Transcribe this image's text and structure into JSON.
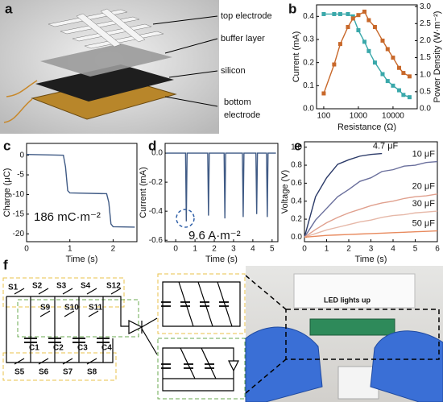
{
  "panel_a": {
    "label": "a",
    "callouts": [
      "top electrode",
      "buffer layer",
      "silicon",
      "bottom",
      "electrode"
    ]
  },
  "chart_data": [
    {
      "type": "line",
      "panel": "b",
      "x_label": "Resistance (Ω)",
      "y_label": "Current (mA)",
      "y2_label": "Power Density (W·m⁻²)",
      "xscale": "log",
      "xlim": [
        62,
        50000
      ],
      "xticks": [
        100,
        1000,
        10000
      ],
      "ylim": [
        0,
        0.45
      ],
      "yticks": [
        {
          "value": 0,
          "label": "0.0"
        },
        {
          "value": 0.1,
          "label": "0.1"
        },
        {
          "value": 0.2,
          "label": "0.2"
        },
        {
          "value": 0.3,
          "label": "0.3"
        },
        {
          "value": 0.4,
          "label": "0.4"
        }
      ],
      "y2lim": [
        0,
        3.05
      ],
      "y2ticks": [
        {
          "value": 0,
          "label": "0.0"
        },
        {
          "value": 0.5,
          "label": "0.5"
        },
        {
          "value": 1,
          "label": "1.0"
        },
        {
          "value": 1.5,
          "label": "1.5"
        },
        {
          "value": 2,
          "label": "2.0"
        },
        {
          "value": 2.5,
          "label": "2.5"
        },
        {
          "value": 3,
          "label": "3.0"
        }
      ],
      "axis_colors": true,
      "x": [
        100,
        200,
        300,
        500,
        700,
        1000,
        1500,
        2000,
        3000,
        5000,
        7000,
        10000,
        15000,
        20000,
        30000
      ],
      "series": [
        {
          "color": "#3aa8aa",
          "marker": "square",
          "values": [
            0.41,
            0.41,
            0.41,
            0.41,
            0.4,
            0.34,
            0.29,
            0.25,
            0.2,
            0.15,
            0.12,
            0.1,
            0.08,
            0.06,
            0.05
          ]
        },
        {
          "color": "#c8682a",
          "marker": "square",
          "axis": "y2",
          "values": [
            0.45,
            1.3,
            1.9,
            2.4,
            2.65,
            2.75,
            2.85,
            2.6,
            2.4,
            2.0,
            1.75,
            1.5,
            1.2,
            1.05,
            0.95
          ]
        }
      ]
    },
    {
      "type": "line",
      "panel": "c",
      "x_label": "Time (s)",
      "y_label": "Charge (μC)",
      "xlim": [
        0,
        2.55
      ],
      "xticks": [
        0,
        1,
        2
      ],
      "ylim": [
        -22,
        3
      ],
      "yticks": [
        0,
        -5,
        -10,
        -15,
        -20
      ],
      "annotation": "186 mC·m⁻²",
      "x": [
        0,
        0.85,
        0.9,
        0.95,
        1.0,
        1.85,
        1.9,
        1.95,
        2.0,
        2.5
      ],
      "series": [
        {
          "color": "#3f5a85",
          "values": [
            0.2,
            0,
            -3,
            -9,
            -9.6,
            -9.8,
            -12,
            -17.5,
            -18.2,
            -18.3
          ]
        }
      ]
    },
    {
      "type": "line",
      "panel": "d",
      "x_label": "Time (s)",
      "y_label": "Current (mA)",
      "xlim": [
        -0.55,
        5.3
      ],
      "xticks": [
        0,
        1,
        2,
        3,
        4,
        5
      ],
      "ylim": [
        -0.61,
        0.067
      ],
      "yticks": [
        {
          "value": 0,
          "label": "0.0"
        },
        -0.2,
        -0.4,
        -0.6
      ],
      "annotation": "9.6 A·m⁻²",
      "x": [
        -0.5,
        0.51,
        0.55,
        0.59,
        1.66,
        1.7,
        1.74,
        2.51,
        2.55,
        2.59,
        3.46,
        3.5,
        3.54,
        4.16,
        4.2,
        4.24,
        4.71,
        4.75,
        4.79,
        5.2
      ],
      "series": [
        {
          "color": "#3f5a85",
          "values": [
            0,
            0,
            -0.47,
            0,
            0,
            -0.43,
            0,
            0,
            -0.45,
            0,
            0,
            -0.44,
            0,
            0,
            -0.42,
            0,
            0,
            -0.44,
            0,
            0
          ]
        }
      ]
    },
    {
      "type": "line",
      "panel": "e",
      "x_label": "Time (s)",
      "y_label": "Voltage (V)",
      "xlim": [
        0,
        6
      ],
      "xticks": [
        0,
        1,
        2,
        3,
        4,
        5,
        6
      ],
      "ylim": [
        -0.05,
        1.06
      ],
      "yticks": [
        {
          "value": 0,
          "label": "0.0"
        },
        0.2,
        0.4,
        0.6,
        0.8,
        {
          "value": 1,
          "label": "1.0"
        }
      ],
      "x": [
        0,
        0.5,
        1,
        1.5,
        2,
        2.5,
        3,
        3.5,
        4,
        4.5,
        5,
        5.5,
        6
      ],
      "series": [
        {
          "name": "4.7 μF",
          "color": "#2b3a68",
          "values": [
            0,
            0.45,
            0.66,
            0.81,
            0.86,
            0.9,
            0.92,
            0.93,
            null,
            null,
            null,
            null,
            null
          ]
        },
        {
          "name": "10 μF",
          "color": "#6a6f9c",
          "values": [
            0,
            0.19,
            0.32,
            0.45,
            0.53,
            0.62,
            0.66,
            0.73,
            0.75,
            0.79,
            0.8,
            0.83,
            0.84
          ]
        },
        {
          "name": "20 μF",
          "color": "#e0a08e",
          "values": [
            0,
            0.085,
            0.16,
            0.22,
            0.27,
            0.31,
            0.35,
            0.38,
            0.4,
            0.43,
            0.45,
            0.46,
            0.48
          ]
        },
        {
          "name": "30 μF",
          "color": "#e6b8a8",
          "values": [
            0,
            0.04,
            0.08,
            0.11,
            0.14,
            0.17,
            0.19,
            0.22,
            0.24,
            0.25,
            0.27,
            0.28,
            0.29
          ]
        },
        {
          "name": "50 μF",
          "color": "#e88a5e",
          "values": [
            0,
            0.01,
            0.02,
            0.025,
            0.03,
            0.035,
            0.04,
            0.045,
            0.05,
            0.055,
            0.06,
            0.065,
            0.07
          ]
        }
      ]
    }
  ],
  "panel_f": {
    "label": "f",
    "switches": [
      "S1",
      "S2",
      "S3",
      "S4",
      "S12",
      "S9",
      "S10",
      "S11",
      "S5",
      "S6",
      "S7",
      "S8"
    ],
    "capacitors": [
      "C1",
      "C2",
      "C3",
      "C4"
    ],
    "photo_caption": "LED lights up"
  }
}
